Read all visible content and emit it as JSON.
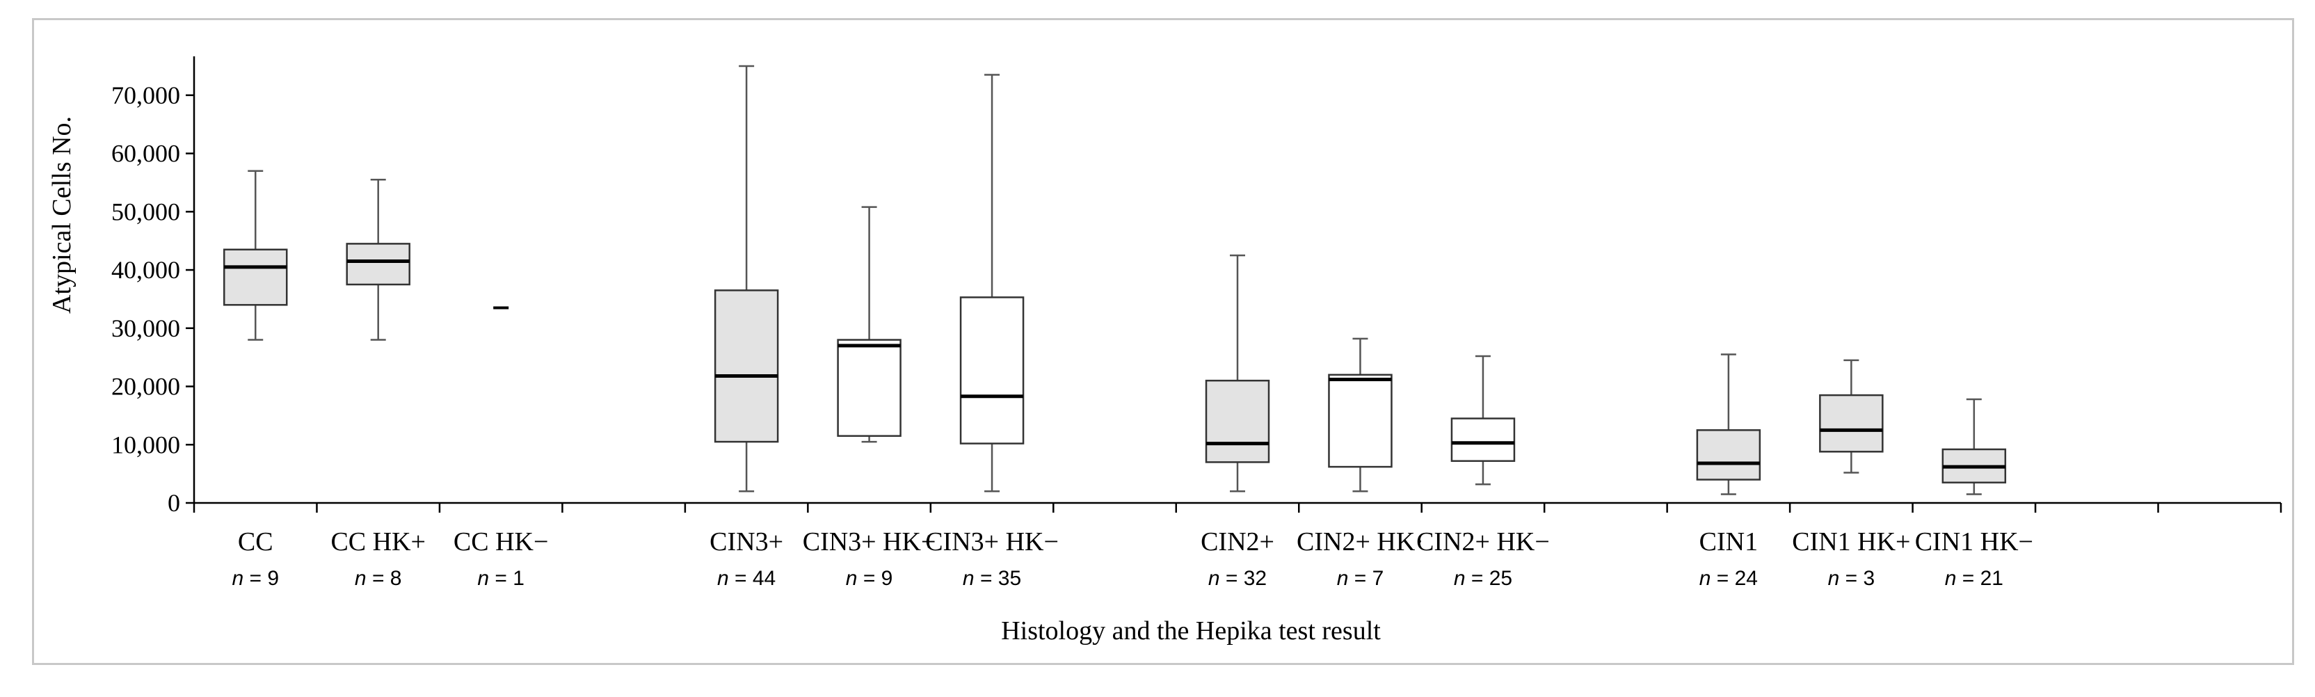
{
  "chart_data": {
    "type": "box",
    "xlabel": "Histology and the Hepika test result",
    "ylabel": "Atypical Cells No.",
    "ylim": [
      0,
      75000
    ],
    "yticks": [
      {
        "value": 0,
        "label": "0"
      },
      {
        "value": 10000,
        "label": "10,000"
      },
      {
        "value": 20000,
        "label": "20,000"
      },
      {
        "value": 30000,
        "label": "30,000"
      },
      {
        "value": 40000,
        "label": "40,000"
      },
      {
        "value": 50000,
        "label": "50,000"
      },
      {
        "value": 60000,
        "label": "60,000"
      },
      {
        "value": 70000,
        "label": "70,000"
      }
    ],
    "grid": false,
    "slot_count": 17,
    "groups": [
      {
        "slot": 0,
        "label": "CC",
        "n_label": "= 9",
        "n": 9,
        "fill": "#e3e3e3",
        "min": 28000,
        "q1": 34000,
        "median": 40500,
        "q3": 43500,
        "max": 57000
      },
      {
        "slot": 1,
        "label": "CC HK+",
        "n_label": "= 8",
        "n": 8,
        "fill": "#e3e3e3",
        "min": 28000,
        "q1": 37500,
        "median": 41500,
        "q3": 44500,
        "max": 55500
      },
      {
        "slot": 2,
        "label": "CC HK−",
        "n_label": "= 1",
        "n": 1,
        "fill": "#ffffff",
        "median": 33500
      },
      {
        "slot": 4,
        "label": "CIN3+",
        "n_label": "= 44",
        "n": 44,
        "fill": "#e3e3e3",
        "min": 2000,
        "q1": 10500,
        "median": 21800,
        "q3": 36500,
        "max": 75000
      },
      {
        "slot": 5,
        "label": "CIN3+ HK+",
        "n_label": "= 9",
        "n": 9,
        "fill": "#ffffff",
        "min": 10500,
        "q1": 11500,
        "median": 27000,
        "q3": 28000,
        "max": 50800
      },
      {
        "slot": 6,
        "label": "CIN3+ HK−",
        "n_label": "= 35",
        "n": 35,
        "fill": "#ffffff",
        "min": 2000,
        "q1": 10200,
        "median": 18300,
        "q3": 35300,
        "max": 73500
      },
      {
        "slot": 8,
        "label": "CIN2+",
        "n_label": "= 32",
        "n": 32,
        "fill": "#e3e3e3",
        "min": 2000,
        "q1": 7000,
        "median": 10200,
        "q3": 21000,
        "max": 42500
      },
      {
        "slot": 9,
        "label": "CIN2+ HK·",
        "n_label": "= 7",
        "n": 7,
        "fill": "#ffffff",
        "min": 2000,
        "q1": 6200,
        "median": 21200,
        "q3": 22000,
        "max": 28200
      },
      {
        "slot": 10,
        "label": "CIN2+ HK−",
        "n_label": "= 25",
        "n": 25,
        "fill": "#ffffff",
        "min": 3200,
        "q1": 7200,
        "median": 10300,
        "q3": 14500,
        "max": 25200
      },
      {
        "slot": 12,
        "label": "CIN1",
        "n_label": "= 24",
        "n": 24,
        "fill": "#e3e3e3",
        "min": 1500,
        "q1": 4000,
        "median": 6800,
        "q3": 12500,
        "max": 25500
      },
      {
        "slot": 13,
        "label": "CIN1 HK+",
        "n_label": "= 3",
        "n": 3,
        "fill": "#e3e3e3",
        "min": 5200,
        "q1": 8800,
        "median": 12500,
        "q3": 18500,
        "max": 24500
      },
      {
        "slot": 14,
        "label": "CIN1 HK−",
        "n_label": "= 21",
        "n": 21,
        "fill": "#e3e3e3",
        "min": 1500,
        "q1": 3500,
        "median": 6200,
        "q3": 9200,
        "max": 17800
      }
    ]
  }
}
